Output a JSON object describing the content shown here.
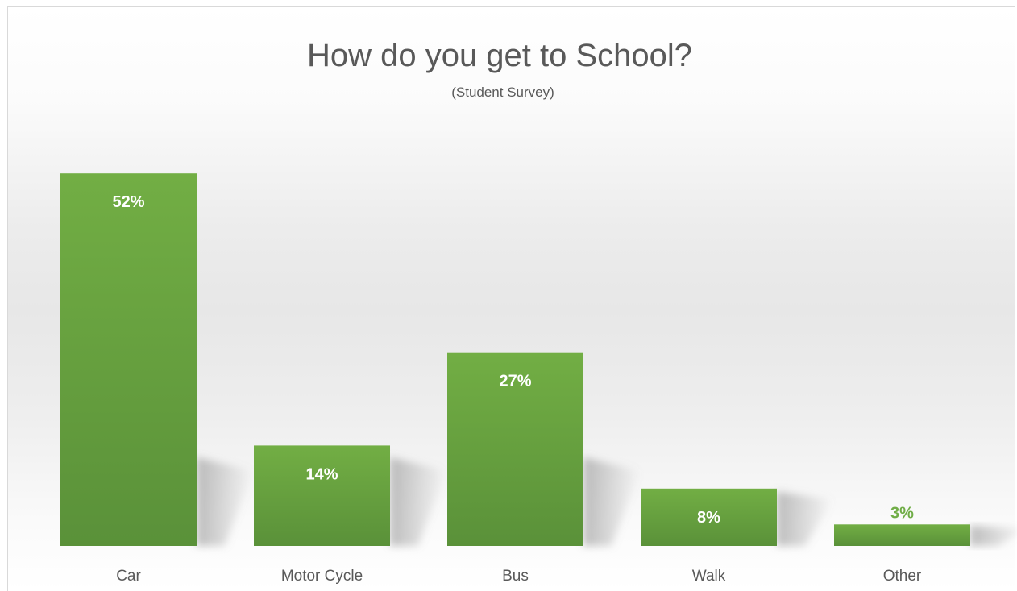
{
  "chart_data": {
    "type": "bar",
    "title": "How do you get to School?",
    "subtitle": "(Student Survey)",
    "categories": [
      "Car",
      "Motor Cycle",
      "Bus",
      "Walk",
      "Other"
    ],
    "values": [
      52,
      14,
      27,
      8,
      3
    ],
    "labels": [
      "52%",
      "14%",
      "27%",
      "8%",
      "3%"
    ],
    "ylim": [
      0,
      60
    ],
    "xlabel": "",
    "ylabel": "",
    "grid": false,
    "legend": "none",
    "colors": {
      "bar_top": "#72ae44",
      "bar_bottom": "#5a9139",
      "label_inside": "#ffffff",
      "label_outside": "#70ad47",
      "text": "#595959"
    }
  }
}
